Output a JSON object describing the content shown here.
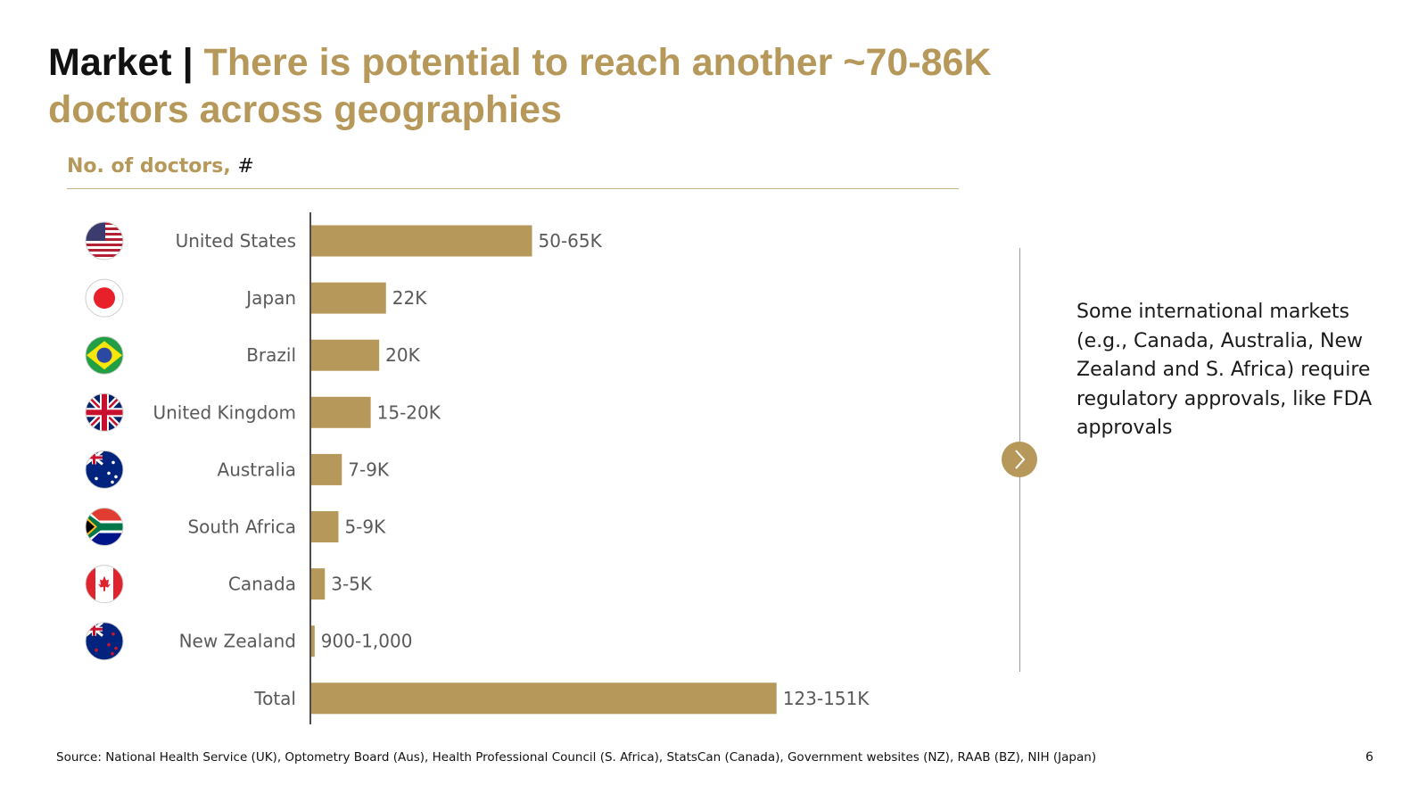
{
  "header": {
    "prefix": "Market | ",
    "title": "There is potential to reach another ~70-86K doctors across geographies"
  },
  "subtitle": {
    "label": "No. of doctors,",
    "unit": "#"
  },
  "chart_data": {
    "type": "bar",
    "orientation": "horizontal",
    "title": "No. of doctors, #",
    "categories": [
      "United States",
      "Japan",
      "Brazil",
      "United Kingdom",
      "Australia",
      "South Africa",
      "Canada",
      "New Zealand",
      "Total"
    ],
    "flags": [
      "flag-us-icon",
      "flag-japan-icon",
      "flag-brazil-icon",
      "flag-uk-icon",
      "flag-australia-icon",
      "flag-south-africa-icon",
      "flag-canada-icon",
      "flag-new-zealand-icon",
      null
    ],
    "values": [
      65000,
      22000,
      20000,
      17500,
      9000,
      8000,
      4000,
      1000,
      137000
    ],
    "labels": [
      "50-65K",
      "22K",
      "20K",
      "15-20K",
      "7-9K",
      "5-9K",
      "3-5K",
      "900-1,000",
      "123-151K"
    ],
    "xlim": [
      0,
      151000
    ],
    "grid": false,
    "bar_color": "#b6995a"
  },
  "note": {
    "text": "Some international markets (e.g., Canada, Australia, New Zealand and S. Africa) require regulatory approvals, like FDA approvals"
  },
  "footer": {
    "source": "Source: National Health Service (UK), Optometry Board (Aus), Health Professional Council (S. Africa), StatsCan (Canada),  Government websites (NZ), RAAB (BZ), NIH (Japan)",
    "page": "6"
  },
  "colors": {
    "accent": "#b6995a",
    "text": "#111111",
    "label": "#595959"
  }
}
